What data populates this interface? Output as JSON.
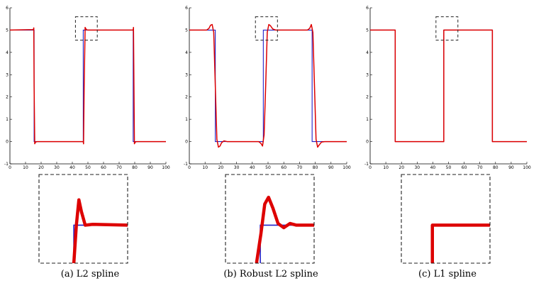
{
  "figure": {
    "captions": [
      "(a) L2 spline",
      "(b) Robust L2 spline",
      "(c) L1 spline"
    ]
  },
  "colors": {
    "ground_truth": "#2020c8",
    "fit": "#dd0000",
    "axis": "#000000",
    "inset_box": "#222222"
  },
  "chart_data": [
    {
      "type": "line",
      "caption": "(a) L2 spline",
      "xlim": [
        0,
        100
      ],
      "ylim": [
        -1,
        6
      ],
      "xticks": [
        0,
        10,
        20,
        30,
        40,
        50,
        60,
        70,
        80,
        90,
        100
      ],
      "yticks": [
        -1,
        0,
        1,
        2,
        3,
        4,
        5,
        6
      ],
      "series": [
        {
          "role": "ground_truth",
          "x": [
            0,
            15.5,
            15.5,
            47,
            47,
            79,
            79,
            100
          ],
          "y": [
            5,
            5,
            0,
            0,
            5,
            5,
            0,
            0
          ]
        },
        {
          "role": "fit",
          "x": [
            0,
            15,
            15.3,
            15.5,
            15.9,
            16.4,
            17.2,
            47,
            47.2,
            47.6,
            48.2,
            49,
            50,
            79,
            79.2,
            79.5,
            79.8,
            80.3,
            81,
            100
          ],
          "y": [
            5,
            5.02,
            5.1,
            2.5,
            -0.1,
            -0.03,
            0,
            0,
            -0.1,
            2.5,
            5.12,
            5.02,
            5,
            5,
            5.12,
            2.5,
            -0.1,
            -0.03,
            0,
            0
          ]
        }
      ],
      "zoom_region": {
        "x": [
          42,
          56
        ],
        "y": [
          4.55,
          5.6
        ]
      }
    },
    {
      "type": "line",
      "caption": "(b) Robust L2 spline",
      "xlim": [
        0,
        100
      ],
      "ylim": [
        -1,
        6
      ],
      "xticks": [
        0,
        10,
        20,
        30,
        40,
        50,
        60,
        70,
        80,
        90,
        100
      ],
      "yticks": [
        -1,
        0,
        1,
        2,
        3,
        4,
        5,
        6
      ],
      "series": [
        {
          "role": "ground_truth",
          "x": [
            0,
            16.5,
            16.5,
            47,
            47,
            78,
            78,
            100
          ],
          "y": [
            5,
            5,
            0,
            0,
            5,
            5,
            0,
            0
          ]
        },
        {
          "role": "fit",
          "x": [
            0,
            11,
            12.5,
            13.5,
            14.5,
            15.5,
            16.5,
            17.5,
            18.5,
            19.5,
            20.5,
            22,
            24,
            44,
            45.5,
            46.5,
            47.5,
            48.5,
            49.5,
            50.5,
            51.5,
            53,
            55,
            75,
            76.5,
            77.5,
            78.5,
            79.5,
            80.5,
            81.5,
            82.5,
            84,
            86,
            100
          ],
          "y": [
            5,
            5,
            5.08,
            5.22,
            5.25,
            4.9,
            2.5,
            0.1,
            -0.25,
            -0.2,
            -0.05,
            0.03,
            0,
            0,
            -0.08,
            -0.2,
            0.3,
            2.5,
            4.9,
            5.25,
            5.2,
            5.05,
            5,
            5,
            5.08,
            5.25,
            4.9,
            2.5,
            0.1,
            -0.25,
            -0.15,
            -0.02,
            0,
            0
          ]
        }
      ],
      "zoom_region": {
        "x": [
          42,
          56
        ],
        "y": [
          4.55,
          5.6
        ]
      }
    },
    {
      "type": "line",
      "caption": "(c) L1 spline",
      "xlim": [
        0,
        100
      ],
      "ylim": [
        -1,
        6
      ],
      "xticks": [
        0,
        10,
        20,
        30,
        40,
        50,
        60,
        70,
        80,
        90,
        100
      ],
      "yticks": [
        -1,
        0,
        1,
        2,
        3,
        4,
        5,
        6
      ],
      "series": [
        {
          "role": "ground_truth",
          "x": [
            0,
            16,
            16,
            47,
            47,
            78,
            78,
            100
          ],
          "y": [
            5,
            5,
            0,
            0,
            5,
            5,
            0,
            0
          ]
        },
        {
          "role": "fit",
          "x": [
            0,
            16,
            16,
            47,
            47,
            78,
            78,
            100
          ],
          "y": [
            5,
            5,
            0,
            0,
            5,
            5,
            0,
            0
          ]
        }
      ],
      "zoom_region": {
        "x": [
          42,
          56
        ],
        "y": [
          4.55,
          5.6
        ]
      }
    }
  ],
  "insets": [
    {
      "xlim": [
        42,
        56
      ],
      "ylim": [
        4.55,
        5.6
      ],
      "ground_truth": {
        "x": [
          47.5,
          47.5,
          56
        ],
        "y": [
          4.55,
          5.0,
          5.0
        ]
      },
      "fit": {
        "x": [
          47.5,
          47.9,
          48.3,
          48.7,
          49.3,
          50.5,
          56
        ],
        "y": [
          4.55,
          5.0,
          5.3,
          5.16,
          5.0,
          5.01,
          5.0
        ]
      }
    },
    {
      "xlim": [
        42,
        56
      ],
      "ylim": [
        4.55,
        5.6
      ],
      "ground_truth": {
        "x": [
          47.5,
          47.5,
          56
        ],
        "y": [
          4.55,
          5.0,
          5.0
        ]
      },
      "fit": {
        "x": [
          46.9,
          47.6,
          48.2,
          48.8,
          49.5,
          50.3,
          51.2,
          52.2,
          53.2,
          56
        ],
        "y": [
          4.55,
          4.9,
          5.25,
          5.33,
          5.2,
          5.02,
          4.97,
          5.02,
          5.0,
          5.0
        ]
      }
    },
    {
      "xlim": [
        42,
        56
      ],
      "ylim": [
        4.55,
        5.6
      ],
      "ground_truth": {
        "x": [
          46.9,
          46.9,
          56
        ],
        "y": [
          4.55,
          5.0,
          5.0
        ]
      },
      "fit": {
        "x": [
          46.9,
          46.9,
          56
        ],
        "y": [
          4.55,
          5.0,
          5.0
        ]
      }
    }
  ]
}
